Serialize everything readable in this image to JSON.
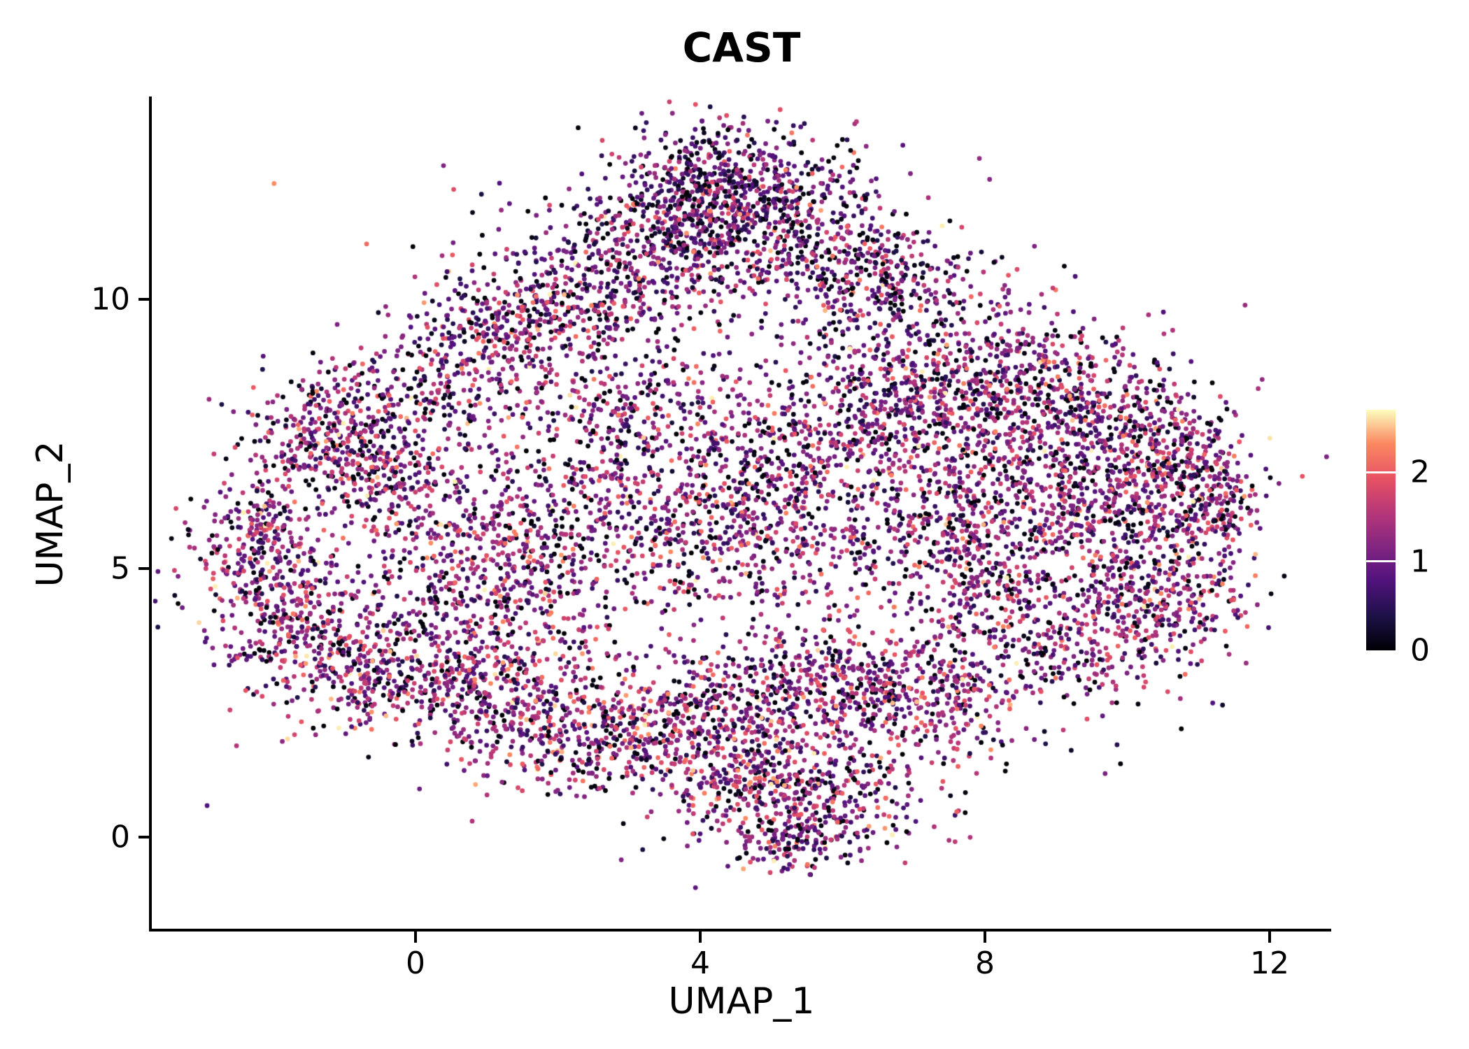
{
  "chart_data": {
    "type": "scatter",
    "title": "CAST",
    "xlabel": "UMAP_1",
    "ylabel": "UMAP_2",
    "x_ticks": [
      0,
      4,
      8,
      12
    ],
    "y_ticks": [
      0,
      5,
      10
    ],
    "x_range": [
      -3.7,
      12.9
    ],
    "y_range": [
      -1.7,
      13.7
    ],
    "grid": false,
    "background": "#ffffff",
    "point_radius_px": 3.4,
    "seed": 42,
    "n_points": 11510,
    "colormap": "magma",
    "colorbar": {
      "position": "right",
      "vmin": 0,
      "vmax": 2.7,
      "ticks": [
        0,
        1,
        2
      ],
      "stops": [
        [
          0.0,
          "#000004"
        ],
        [
          0.14,
          "#1d1147"
        ],
        [
          0.29,
          "#51127c"
        ],
        [
          0.43,
          "#822681"
        ],
        [
          0.57,
          "#b63679"
        ],
        [
          0.71,
          "#e65164"
        ],
        [
          0.86,
          "#fb8861"
        ],
        [
          1.0,
          "#fcfdbf"
        ]
      ]
    },
    "expression": {
      "zero_fraction": 0.12,
      "mean": 1.15,
      "sd": 0.6,
      "max": 2.65
    },
    "clusters_columns": [
      "center_x",
      "center_y",
      "sd_x",
      "sd_y",
      "n_points",
      "value_bias"
    ],
    "clusters": [
      [
        4.4,
        12.0,
        0.85,
        0.6,
        650,
        -0.2
      ],
      [
        3.4,
        11.0,
        1.0,
        0.65,
        400,
        -0.15
      ],
      [
        5.5,
        11.0,
        0.9,
        0.6,
        320,
        -0.15
      ],
      [
        2.3,
        10.0,
        0.9,
        0.6,
        300,
        -0.1
      ],
      [
        6.6,
        10.0,
        0.9,
        0.7,
        300,
        -0.1
      ],
      [
        1.3,
        9.3,
        0.7,
        0.5,
        220,
        0
      ],
      [
        0.3,
        8.4,
        0.8,
        0.6,
        220,
        0
      ],
      [
        -1.2,
        7.5,
        0.6,
        0.6,
        300,
        0
      ],
      [
        -0.4,
        6.8,
        0.7,
        0.5,
        200,
        0.05
      ],
      [
        -2.2,
        5.2,
        0.5,
        0.8,
        330,
        0
      ],
      [
        -1.6,
        4.0,
        0.6,
        0.6,
        230,
        0.05
      ],
      [
        -0.9,
        3.0,
        0.6,
        0.5,
        190,
        0.1
      ],
      [
        0.6,
        5.8,
        0.9,
        0.8,
        260,
        0
      ],
      [
        1.8,
        4.8,
        0.9,
        0.8,
        260,
        0.05
      ],
      [
        0.7,
        4.0,
        0.8,
        0.6,
        210,
        0.05
      ],
      [
        3.2,
        6.3,
        1.0,
        0.9,
        360,
        0
      ],
      [
        4.6,
        5.6,
        0.9,
        0.8,
        300,
        0
      ],
      [
        3.0,
        7.9,
        0.8,
        0.6,
        220,
        -0.05
      ],
      [
        5.6,
        7.2,
        0.9,
        0.7,
        300,
        0
      ],
      [
        6.8,
        7.9,
        0.8,
        0.65,
        290,
        0
      ],
      [
        8.0,
        8.6,
        0.9,
        0.7,
        340,
        0
      ],
      [
        9.3,
        8.0,
        0.8,
        0.7,
        320,
        0
      ],
      [
        10.3,
        7.2,
        0.6,
        0.6,
        260,
        0
      ],
      [
        11.1,
        6.4,
        0.4,
        0.6,
        220,
        0.05
      ],
      [
        8.6,
        6.7,
        0.8,
        0.7,
        280,
        0
      ],
      [
        9.8,
        5.9,
        0.7,
        0.6,
        220,
        0
      ],
      [
        10.6,
        4.5,
        0.6,
        0.6,
        240,
        0.05
      ],
      [
        9.4,
        3.6,
        0.8,
        0.55,
        240,
        0.05
      ],
      [
        8.2,
        4.6,
        0.8,
        0.7,
        240,
        0
      ],
      [
        7.2,
        5.6,
        0.7,
        0.6,
        200,
        0
      ],
      [
        6.4,
        3.0,
        0.9,
        0.6,
        300,
        0.1
      ],
      [
        5.2,
        2.6,
        0.9,
        0.6,
        300,
        0.1
      ],
      [
        3.9,
        2.2,
        0.9,
        0.6,
        300,
        0.1
      ],
      [
        2.6,
        1.8,
        0.8,
        0.5,
        280,
        0.1
      ],
      [
        1.4,
        2.4,
        0.7,
        0.6,
        240,
        0.05
      ],
      [
        0.2,
        2.9,
        0.7,
        0.5,
        200,
        0.05
      ],
      [
        7.4,
        2.4,
        0.6,
        0.5,
        180,
        0.05
      ],
      [
        5.6,
        0.7,
        0.9,
        0.5,
        330,
        0
      ],
      [
        4.6,
        1.1,
        0.6,
        0.4,
        160,
        0.05
      ],
      [
        5.3,
        -0.1,
        0.5,
        0.3,
        120,
        0
      ],
      [
        4.3,
        6.6,
        3.0,
        2.6,
        420,
        0
      ],
      [
        8.6,
        6.0,
        1.5,
        1.6,
        260,
        0
      ]
    ]
  }
}
